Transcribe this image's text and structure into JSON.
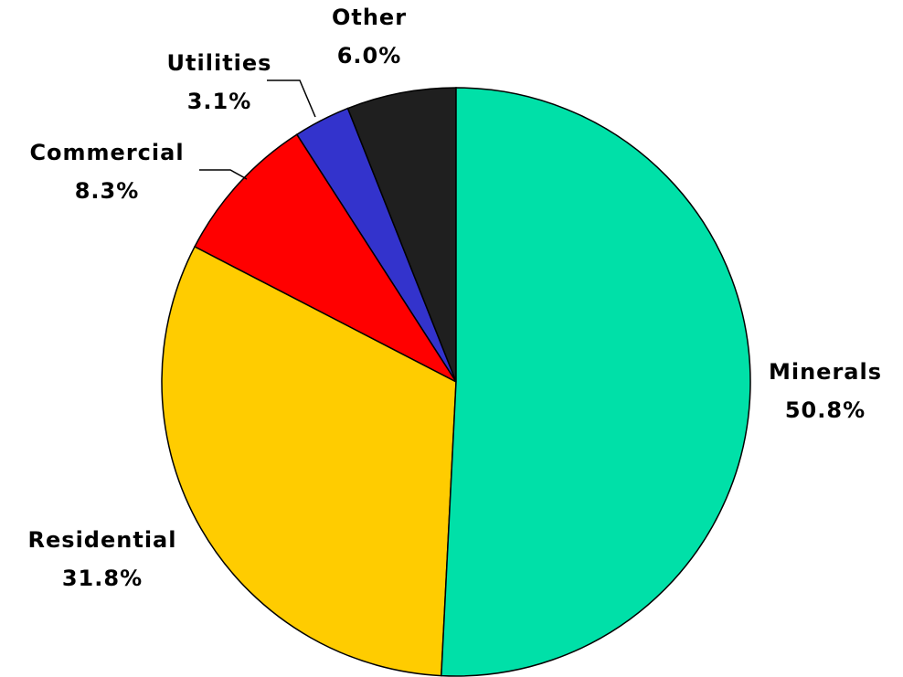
{
  "chart_data": {
    "type": "pie",
    "categories": [
      "Minerals",
      "Residential",
      "Commercial",
      "Utilities",
      "Other"
    ],
    "values": [
      50.8,
      31.8,
      8.3,
      3.1,
      6.0
    ],
    "value_labels": [
      "50.8%",
      "31.8%",
      "8.3%",
      "3.1%",
      "6.0%"
    ],
    "colors": [
      "#00e0a8",
      "#ffcc00",
      "#ff0000",
      "#3333cc",
      "#1f1f1f"
    ]
  }
}
